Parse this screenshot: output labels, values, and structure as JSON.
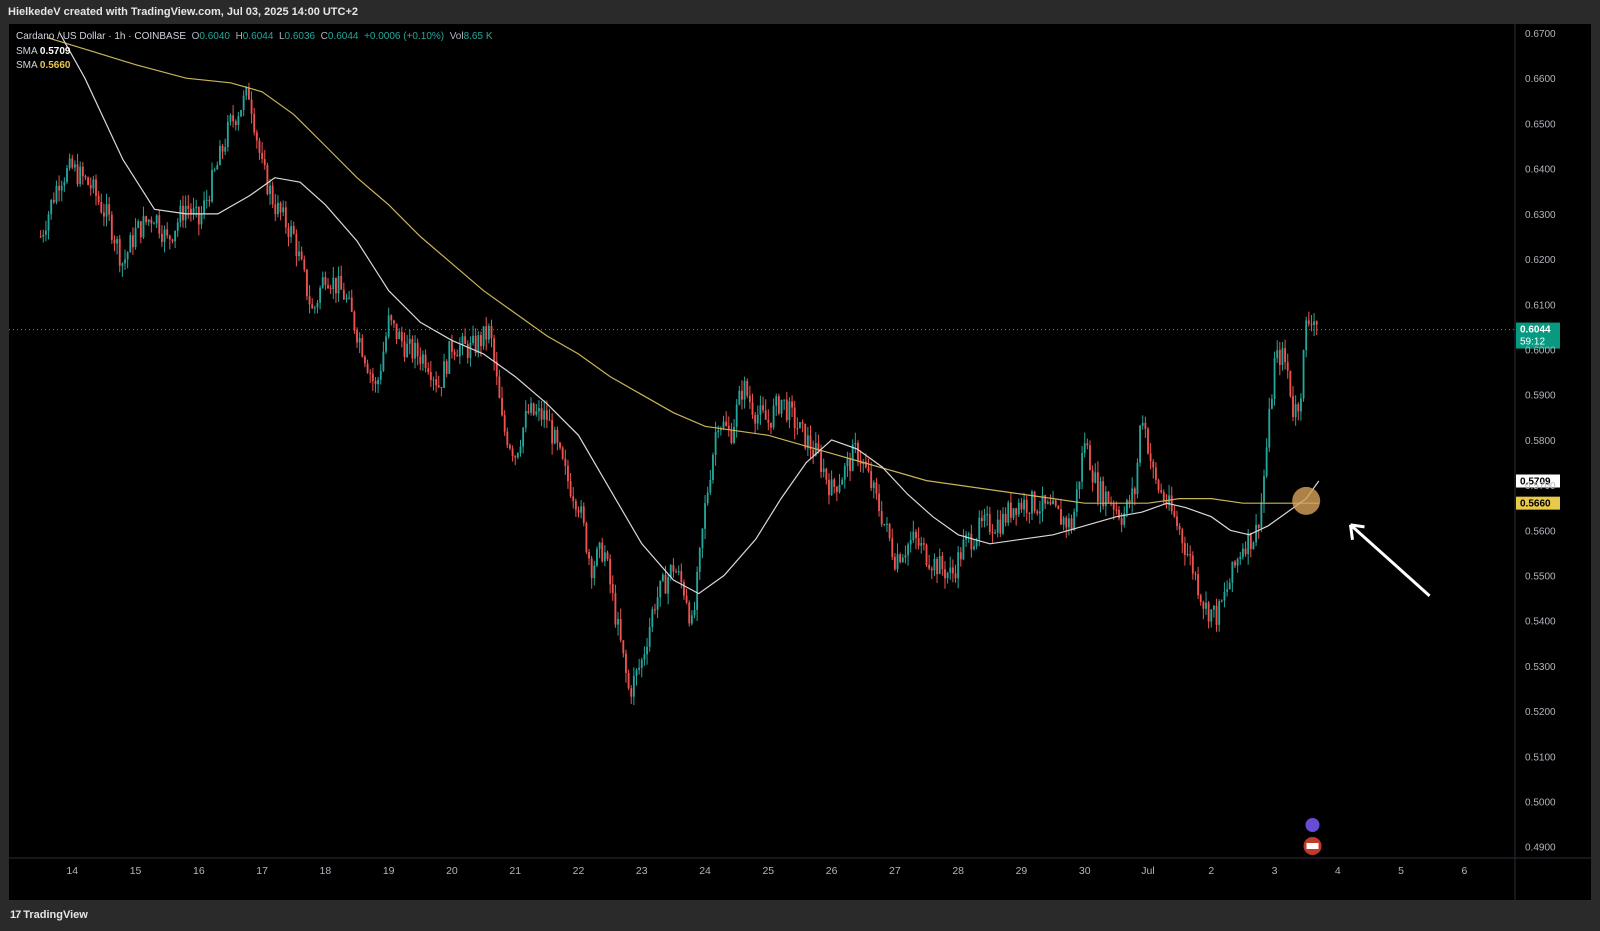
{
  "header": {
    "attribution": "HielkedeV created with TradingView.com, Jul 03, 2025 14:00 UTC+2"
  },
  "legend": {
    "symbol": "Cardano / US Dollar · 1h · COINBASE",
    "open_label": "O",
    "open": "0.6040",
    "high_label": "H",
    "high": "0.6044",
    "low_label": "L",
    "low": "0.6036",
    "close_label": "C",
    "close": "0.6044",
    "change": "+0.0006 (+0.10%)",
    "vol_label": "Vol",
    "vol": "8.65 K",
    "sma1_label": "SMA",
    "sma1_value": "0.5709",
    "sma2_label": "SMA",
    "sma2_value": "0.5660"
  },
  "footer": {
    "brand": "TradingView",
    "brand_mark": "17"
  },
  "colors": {
    "background": "#000000",
    "frame": "#2a2a2a",
    "up": "#26a69a",
    "down": "#ef5350",
    "sma1": "#d9d9d9",
    "sma2": "#c9b458",
    "price_tag": "#089981",
    "highlight_circle": "#d8a25a",
    "arrow": "#ffffff"
  },
  "chart_data": {
    "type": "candlestick",
    "symbol": "Cardano / US Dollar",
    "interval": "1h",
    "exchange": "COINBASE",
    "x_tick_labels": [
      "14",
      "15",
      "16",
      "17",
      "18",
      "19",
      "20",
      "21",
      "22",
      "23",
      "24",
      "25",
      "26",
      "27",
      "28",
      "29",
      "30",
      "Jul",
      "2",
      "3",
      "4",
      "5",
      "6"
    ],
    "y_tick_labels": [
      "0.6700",
      "0.6600",
      "0.6500",
      "0.6400",
      "0.6300",
      "0.6200",
      "0.6100",
      "0.6000",
      "0.5900",
      "0.5800",
      "0.5700",
      "0.5600",
      "0.5500",
      "0.5400",
      "0.5300",
      "0.5200",
      "0.5100",
      "0.5000",
      "0.4900"
    ],
    "ylim": [
      0.4875,
      0.672
    ],
    "last_price": {
      "value": 0.6044,
      "label": "0.6044",
      "countdown": "59:12"
    },
    "sma_tags": [
      {
        "value": 0.5709,
        "label": "0.5709"
      },
      {
        "value": 0.566,
        "label": "0.5660"
      }
    ],
    "price_path": [
      {
        "x": 13.5,
        "y": 0.625
      },
      {
        "x": 13.8,
        "y": 0.638
      },
      {
        "x": 14.0,
        "y": 0.64
      },
      {
        "x": 14.3,
        "y": 0.636
      },
      {
        "x": 14.6,
        "y": 0.628
      },
      {
        "x": 14.8,
        "y": 0.619
      },
      {
        "x": 15.0,
        "y": 0.626
      },
      {
        "x": 15.3,
        "y": 0.63
      },
      {
        "x": 15.5,
        "y": 0.624
      },
      {
        "x": 15.8,
        "y": 0.632
      },
      {
        "x": 16.0,
        "y": 0.628
      },
      {
        "x": 16.3,
        "y": 0.641
      },
      {
        "x": 16.5,
        "y": 0.65
      },
      {
        "x": 16.8,
        "y": 0.657
      },
      {
        "x": 17.0,
        "y": 0.64
      },
      {
        "x": 17.2,
        "y": 0.632
      },
      {
        "x": 17.5,
        "y": 0.625
      },
      {
        "x": 17.8,
        "y": 0.608
      },
      {
        "x": 18.0,
        "y": 0.617
      },
      {
        "x": 18.3,
        "y": 0.612
      },
      {
        "x": 18.6,
        "y": 0.6
      },
      {
        "x": 18.8,
        "y": 0.591
      },
      {
        "x": 19.0,
        "y": 0.606
      },
      {
        "x": 19.3,
        "y": 0.6
      },
      {
        "x": 19.6,
        "y": 0.598
      },
      {
        "x": 19.8,
        "y": 0.592
      },
      {
        "x": 20.0,
        "y": 0.601
      },
      {
        "x": 20.3,
        "y": 0.6
      },
      {
        "x": 20.6,
        "y": 0.604
      },
      {
        "x": 20.8,
        "y": 0.583
      },
      {
        "x": 21.0,
        "y": 0.577
      },
      {
        "x": 21.2,
        "y": 0.586
      },
      {
        "x": 21.5,
        "y": 0.585
      },
      {
        "x": 21.8,
        "y": 0.572
      },
      {
        "x": 22.0,
        "y": 0.566
      },
      {
        "x": 22.2,
        "y": 0.552
      },
      {
        "x": 22.4,
        "y": 0.556
      },
      {
        "x": 22.6,
        "y": 0.54
      },
      {
        "x": 22.8,
        "y": 0.524
      },
      {
        "x": 23.0,
        "y": 0.531
      },
      {
        "x": 23.2,
        "y": 0.544
      },
      {
        "x": 23.5,
        "y": 0.552
      },
      {
        "x": 23.7,
        "y": 0.546
      },
      {
        "x": 23.8,
        "y": 0.538
      },
      {
        "x": 24.0,
        "y": 0.565
      },
      {
        "x": 24.2,
        "y": 0.585
      },
      {
        "x": 24.4,
        "y": 0.581
      },
      {
        "x": 24.6,
        "y": 0.592
      },
      {
        "x": 24.8,
        "y": 0.586
      },
      {
        "x": 25.0,
        "y": 0.584
      },
      {
        "x": 25.2,
        "y": 0.589
      },
      {
        "x": 25.5,
        "y": 0.582
      },
      {
        "x": 25.8,
        "y": 0.576
      },
      {
        "x": 26.0,
        "y": 0.569
      },
      {
        "x": 26.2,
        "y": 0.573
      },
      {
        "x": 26.4,
        "y": 0.578
      },
      {
        "x": 26.6,
        "y": 0.571
      },
      {
        "x": 26.8,
        "y": 0.563
      },
      {
        "x": 27.0,
        "y": 0.554
      },
      {
        "x": 27.3,
        "y": 0.558
      },
      {
        "x": 27.6,
        "y": 0.553
      },
      {
        "x": 27.9,
        "y": 0.55
      },
      {
        "x": 28.1,
        "y": 0.557
      },
      {
        "x": 28.4,
        "y": 0.561
      },
      {
        "x": 28.7,
        "y": 0.562
      },
      {
        "x": 28.9,
        "y": 0.566
      },
      {
        "x": 29.2,
        "y": 0.566
      },
      {
        "x": 29.5,
        "y": 0.564
      },
      {
        "x": 29.8,
        "y": 0.561
      },
      {
        "x": 30.0,
        "y": 0.58
      },
      {
        "x": 30.2,
        "y": 0.569
      },
      {
        "x": 30.4,
        "y": 0.567
      },
      {
        "x": 30.6,
        "y": 0.563
      },
      {
        "x": 30.8,
        "y": 0.569
      },
      {
        "x": 30.9,
        "y": 0.587
      },
      {
        "x": 31.1,
        "y": 0.571
      },
      {
        "x": 31.3,
        "y": 0.566
      },
      {
        "x": 31.5,
        "y": 0.56
      },
      {
        "x": 31.7,
        "y": 0.552
      },
      {
        "x": 31.9,
        "y": 0.543
      },
      {
        "x": 32.1,
        "y": 0.541
      },
      {
        "x": 32.3,
        "y": 0.549
      },
      {
        "x": 32.5,
        "y": 0.557
      },
      {
        "x": 32.7,
        "y": 0.559
      },
      {
        "x": 32.8,
        "y": 0.567
      },
      {
        "x": 32.9,
        "y": 0.582
      },
      {
        "x": 33.0,
        "y": 0.597
      },
      {
        "x": 33.1,
        "y": 0.599
      },
      {
        "x": 33.2,
        "y": 0.596
      },
      {
        "x": 33.3,
        "y": 0.586
      },
      {
        "x": 33.4,
        "y": 0.589
      },
      {
        "x": 33.5,
        "y": 0.605
      },
      {
        "x": 33.6,
        "y": 0.608
      },
      {
        "x": 33.7,
        "y": 0.6044
      }
    ],
    "sma_fast": [
      {
        "x": 13.8,
        "y": 0.67
      },
      {
        "x": 14.2,
        "y": 0.66
      },
      {
        "x": 14.8,
        "y": 0.642
      },
      {
        "x": 15.3,
        "y": 0.631
      },
      {
        "x": 15.8,
        "y": 0.63
      },
      {
        "x": 16.3,
        "y": 0.63
      },
      {
        "x": 16.8,
        "y": 0.634
      },
      {
        "x": 17.2,
        "y": 0.638
      },
      {
        "x": 17.6,
        "y": 0.637
      },
      {
        "x": 18.0,
        "y": 0.632
      },
      {
        "x": 18.5,
        "y": 0.624
      },
      {
        "x": 19.0,
        "y": 0.613
      },
      {
        "x": 19.5,
        "y": 0.606
      },
      {
        "x": 20.0,
        "y": 0.602
      },
      {
        "x": 20.5,
        "y": 0.599
      },
      {
        "x": 21.0,
        "y": 0.594
      },
      {
        "x": 21.5,
        "y": 0.588
      },
      {
        "x": 22.0,
        "y": 0.581
      },
      {
        "x": 22.5,
        "y": 0.569
      },
      {
        "x": 23.0,
        "y": 0.557
      },
      {
        "x": 23.5,
        "y": 0.549
      },
      {
        "x": 23.9,
        "y": 0.546
      },
      {
        "x": 24.3,
        "y": 0.55
      },
      {
        "x": 24.8,
        "y": 0.558
      },
      {
        "x": 25.2,
        "y": 0.567
      },
      {
        "x": 25.6,
        "y": 0.575
      },
      {
        "x": 26.0,
        "y": 0.58
      },
      {
        "x": 26.4,
        "y": 0.578
      },
      {
        "x": 26.8,
        "y": 0.574
      },
      {
        "x": 27.2,
        "y": 0.568
      },
      {
        "x": 27.6,
        "y": 0.563
      },
      {
        "x": 28.0,
        "y": 0.559
      },
      {
        "x": 28.5,
        "y": 0.557
      },
      {
        "x": 29.0,
        "y": 0.558
      },
      {
        "x": 29.5,
        "y": 0.559
      },
      {
        "x": 30.0,
        "y": 0.561
      },
      {
        "x": 30.5,
        "y": 0.563
      },
      {
        "x": 30.9,
        "y": 0.564
      },
      {
        "x": 31.3,
        "y": 0.566
      },
      {
        "x": 31.6,
        "y": 0.565
      },
      {
        "x": 32.0,
        "y": 0.563
      },
      {
        "x": 32.3,
        "y": 0.56
      },
      {
        "x": 32.6,
        "y": 0.559
      },
      {
        "x": 32.9,
        "y": 0.561
      },
      {
        "x": 33.2,
        "y": 0.564
      },
      {
        "x": 33.5,
        "y": 0.567
      },
      {
        "x": 33.7,
        "y": 0.5709
      }
    ],
    "sma_slow": [
      {
        "x": 13.6,
        "y": 0.669
      },
      {
        "x": 14.3,
        "y": 0.666
      },
      {
        "x": 15.0,
        "y": 0.663
      },
      {
        "x": 15.8,
        "y": 0.66
      },
      {
        "x": 16.5,
        "y": 0.659
      },
      {
        "x": 17.0,
        "y": 0.657
      },
      {
        "x": 17.5,
        "y": 0.652
      },
      {
        "x": 18.0,
        "y": 0.645
      },
      {
        "x": 18.5,
        "y": 0.638
      },
      {
        "x": 19.0,
        "y": 0.632
      },
      {
        "x": 19.5,
        "y": 0.625
      },
      {
        "x": 20.0,
        "y": 0.619
      },
      {
        "x": 20.5,
        "y": 0.613
      },
      {
        "x": 21.0,
        "y": 0.608
      },
      {
        "x": 21.5,
        "y": 0.603
      },
      {
        "x": 22.0,
        "y": 0.599
      },
      {
        "x": 22.5,
        "y": 0.594
      },
      {
        "x": 23.0,
        "y": 0.59
      },
      {
        "x": 23.5,
        "y": 0.586
      },
      {
        "x": 24.0,
        "y": 0.583
      },
      {
        "x": 24.5,
        "y": 0.582
      },
      {
        "x": 25.0,
        "y": 0.581
      },
      {
        "x": 25.5,
        "y": 0.579
      },
      {
        "x": 26.0,
        "y": 0.577
      },
      {
        "x": 26.5,
        "y": 0.575
      },
      {
        "x": 27.0,
        "y": 0.573
      },
      {
        "x": 27.5,
        "y": 0.571
      },
      {
        "x": 28.0,
        "y": 0.57
      },
      {
        "x": 28.5,
        "y": 0.569
      },
      {
        "x": 29.0,
        "y": 0.568
      },
      {
        "x": 29.5,
        "y": 0.567
      },
      {
        "x": 30.0,
        "y": 0.566
      },
      {
        "x": 30.5,
        "y": 0.566
      },
      {
        "x": 31.0,
        "y": 0.566
      },
      {
        "x": 31.5,
        "y": 0.567
      },
      {
        "x": 32.0,
        "y": 0.567
      },
      {
        "x": 32.5,
        "y": 0.566
      },
      {
        "x": 33.0,
        "y": 0.566
      },
      {
        "x": 33.5,
        "y": 0.566
      },
      {
        "x": 33.7,
        "y": 0.566
      }
    ]
  }
}
